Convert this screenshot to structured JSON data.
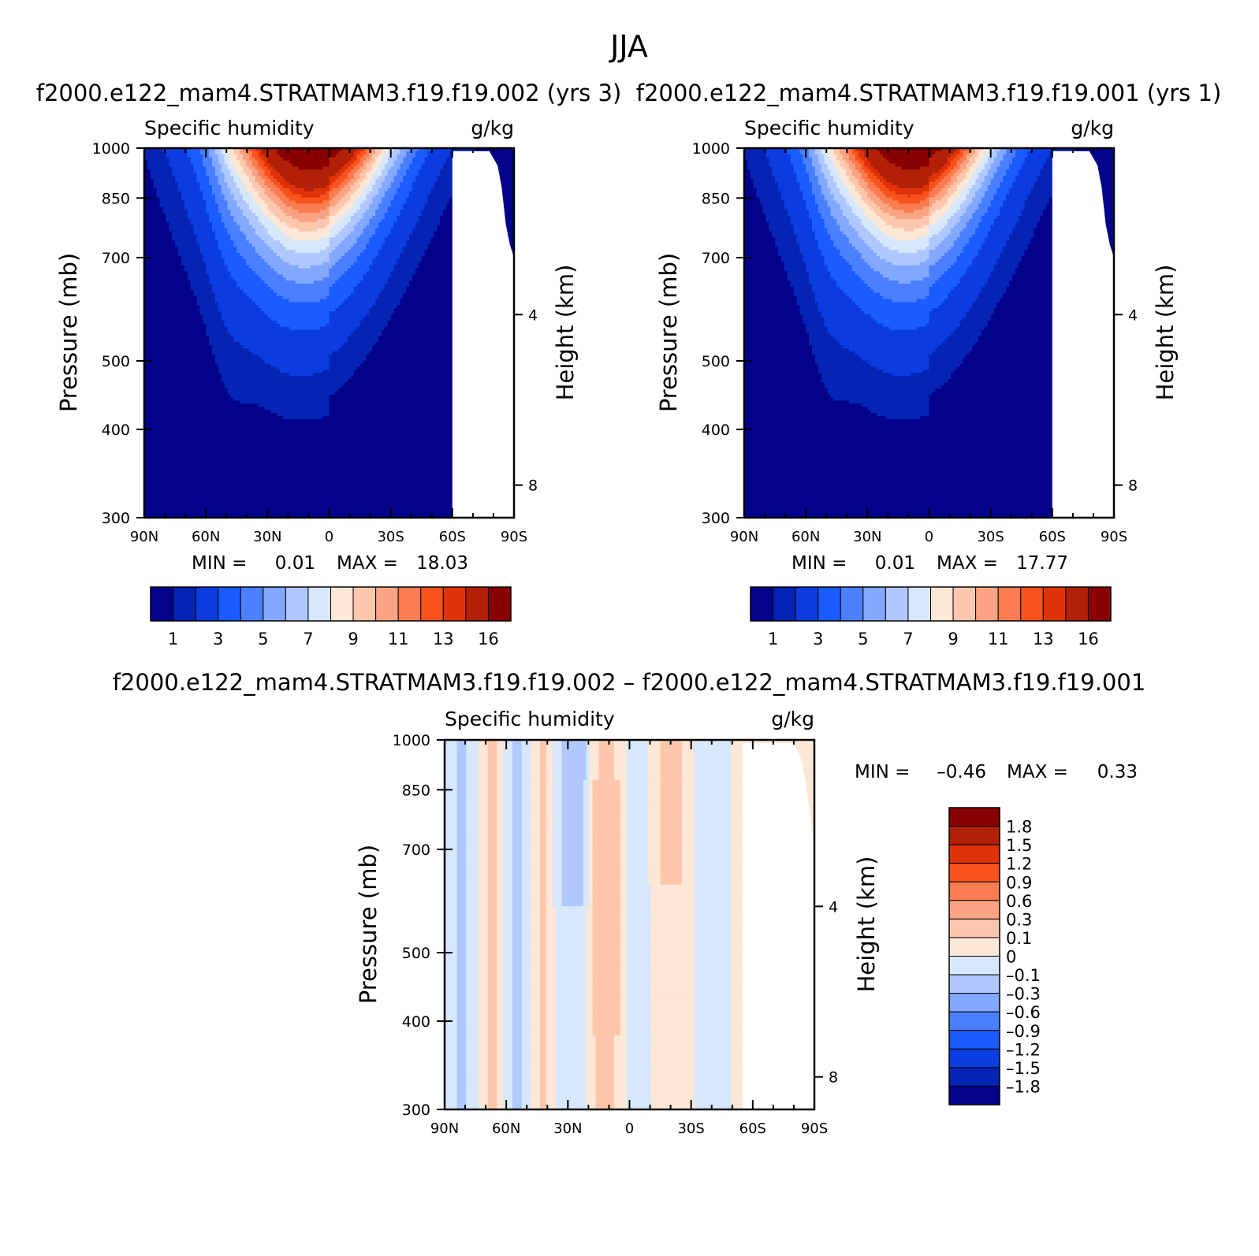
{
  "page": {
    "title": "JJA"
  },
  "colors": {
    "abs_palette": [
      "#02028a",
      "#0524b4",
      "#0a3ce0",
      "#1a5cff",
      "#4a80ff",
      "#82a8ff",
      "#b0c8ff",
      "#d8e8fc",
      "#fde7d6",
      "#fdc7ad",
      "#fba382",
      "#fb7c51",
      "#f8531d",
      "#e03208",
      "#b22008",
      "#880000"
    ],
    "diff_palette": [
      "#02028a",
      "#0524b4",
      "#0a3ce0",
      "#1a5cff",
      "#4a80ff",
      "#82a8ff",
      "#b0c8ff",
      "#d8e8fc",
      "#fde7d6",
      "#fdc7ad",
      "#fba382",
      "#fb7c51",
      "#f8531d",
      "#e03208",
      "#b22008",
      "#880000"
    ]
  },
  "chart_data": [
    {
      "id": "left",
      "type": "heatmap",
      "run_title": "f2000.e122_mam4.STRATMAM3.f19.f19.002 (yrs 3)",
      "variable": "Specific humidity",
      "units": "g/kg",
      "xlabel": "",
      "ylabel": "Pressure (mb)",
      "y2label": "Height (km)",
      "x_range": [
        90,
        -90
      ],
      "y_range": [
        1000,
        300
      ],
      "x_ticks": [
        {
          "v": 90,
          "label": "90N"
        },
        {
          "v": 60,
          "label": "60N"
        },
        {
          "v": 30,
          "label": "30N"
        },
        {
          "v": 0,
          "label": "0"
        },
        {
          "v": -30,
          "label": "30S"
        },
        {
          "v": -60,
          "label": "60S"
        },
        {
          "v": -90,
          "label": "90S"
        }
      ],
      "y_ticks": [
        300,
        400,
        500,
        700,
        850,
        1000
      ],
      "y2_ticks": [
        {
          "km": 8,
          "label": "8"
        },
        {
          "km": 4,
          "label": "4"
        }
      ],
      "stats": {
        "min_label": "MIN =",
        "min": "0.01",
        "max_label": "MAX =",
        "max": "18.03"
      },
      "levels": [
        0.5,
        1,
        2,
        3,
        4,
        5,
        6,
        7,
        8,
        9,
        10,
        11,
        12,
        13,
        16
      ],
      "colorbar_labels": [
        "1",
        "3",
        "5",
        "7",
        "9",
        "11",
        "13",
        "16"
      ],
      "peak": {
        "lat": 8,
        "value": 18.03
      },
      "surface_mask": [
        {
          "lat": -60,
          "p": 990
        },
        {
          "lat": -78,
          "p": 990
        },
        {
          "lat": -82,
          "p": 945
        },
        {
          "lat": -84,
          "p": 880
        },
        {
          "lat": -86,
          "p": 780
        },
        {
          "lat": -88,
          "p": 730
        },
        {
          "lat": -90,
          "p": 700
        }
      ]
    },
    {
      "id": "right",
      "type": "heatmap",
      "run_title": "f2000.e122_mam4.STRATMAM3.f19.f19.001 (yrs 1)",
      "variable": "Specific humidity",
      "units": "g/kg",
      "xlabel": "",
      "ylabel": "Pressure (mb)",
      "y2label": "Height (km)",
      "x_range": [
        90,
        -90
      ],
      "y_range": [
        1000,
        300
      ],
      "x_ticks": [
        {
          "v": 90,
          "label": "90N"
        },
        {
          "v": 60,
          "label": "60N"
        },
        {
          "v": 30,
          "label": "30N"
        },
        {
          "v": 0,
          "label": "0"
        },
        {
          "v": -30,
          "label": "30S"
        },
        {
          "v": -60,
          "label": "60S"
        },
        {
          "v": -90,
          "label": "90S"
        }
      ],
      "y_ticks": [
        300,
        400,
        500,
        700,
        850,
        1000
      ],
      "y2_ticks": [
        {
          "km": 8,
          "label": "8"
        },
        {
          "km": 4,
          "label": "4"
        }
      ],
      "stats": {
        "min_label": "MIN =",
        "min": "0.01",
        "max_label": "MAX =",
        "max": "17.77"
      },
      "levels": [
        0.5,
        1,
        2,
        3,
        4,
        5,
        6,
        7,
        8,
        9,
        10,
        11,
        12,
        13,
        16
      ],
      "colorbar_labels": [
        "1",
        "3",
        "5",
        "7",
        "9",
        "11",
        "13",
        "16"
      ],
      "peak": {
        "lat": 8,
        "value": 17.77
      },
      "surface_mask": [
        {
          "lat": -60,
          "p": 990
        },
        {
          "lat": -78,
          "p": 990
        },
        {
          "lat": -82,
          "p": 945
        },
        {
          "lat": -84,
          "p": 880
        },
        {
          "lat": -86,
          "p": 780
        },
        {
          "lat": -88,
          "p": 730
        },
        {
          "lat": -90,
          "p": 700
        }
      ]
    },
    {
      "id": "diff",
      "type": "heatmap",
      "run_title": "f2000.e122_mam4.STRATMAM3.f19.f19.002 – f2000.e122_mam4.STRATMAM3.f19.f19.001",
      "variable": "Specific humidity",
      "units": "g/kg",
      "xlabel": "",
      "ylabel": "Pressure (mb)",
      "y2label": "Height (km)",
      "x_range": [
        90,
        -90
      ],
      "y_range": [
        1000,
        300
      ],
      "x_ticks": [
        {
          "v": 90,
          "label": "90N"
        },
        {
          "v": 60,
          "label": "60N"
        },
        {
          "v": 30,
          "label": "30N"
        },
        {
          "v": 0,
          "label": "0"
        },
        {
          "v": -30,
          "label": "30S"
        },
        {
          "v": -60,
          "label": "60S"
        },
        {
          "v": -90,
          "label": "90S"
        }
      ],
      "y_ticks": [
        300,
        400,
        500,
        700,
        850,
        1000
      ],
      "y2_ticks": [
        {
          "km": 8,
          "label": "8"
        },
        {
          "km": 4,
          "label": "4"
        }
      ],
      "stats": {
        "min_label": "MIN =",
        "min": "–0.46",
        "max_label": "MAX =",
        "max": "0.33"
      },
      "levels": [
        -1.8,
        -1.5,
        -1.2,
        -0.9,
        -0.6,
        -0.3,
        -0.1,
        0,
        0.1,
        0.3,
        0.6,
        0.9,
        1.2,
        1.5,
        1.8
      ],
      "colorbar_labels": [
        "1.8",
        "1.5",
        "1.2",
        "0.9",
        "0.6",
        "0.3",
        "0.1",
        "0",
        "–0.1",
        "–0.3",
        "–0.6",
        "–0.9",
        "–1.2",
        "–1.5",
        "–1.8"
      ],
      "surface_mask": [
        {
          "lat": -55,
          "p": 990
        },
        {
          "lat": -80,
          "p": 990
        },
        {
          "lat": -82,
          "p": 965
        },
        {
          "lat": -84,
          "p": 930
        },
        {
          "lat": -86,
          "p": 860
        },
        {
          "lat": -88,
          "p": 780
        },
        {
          "lat": -90,
          "p": 700
        }
      ]
    }
  ]
}
